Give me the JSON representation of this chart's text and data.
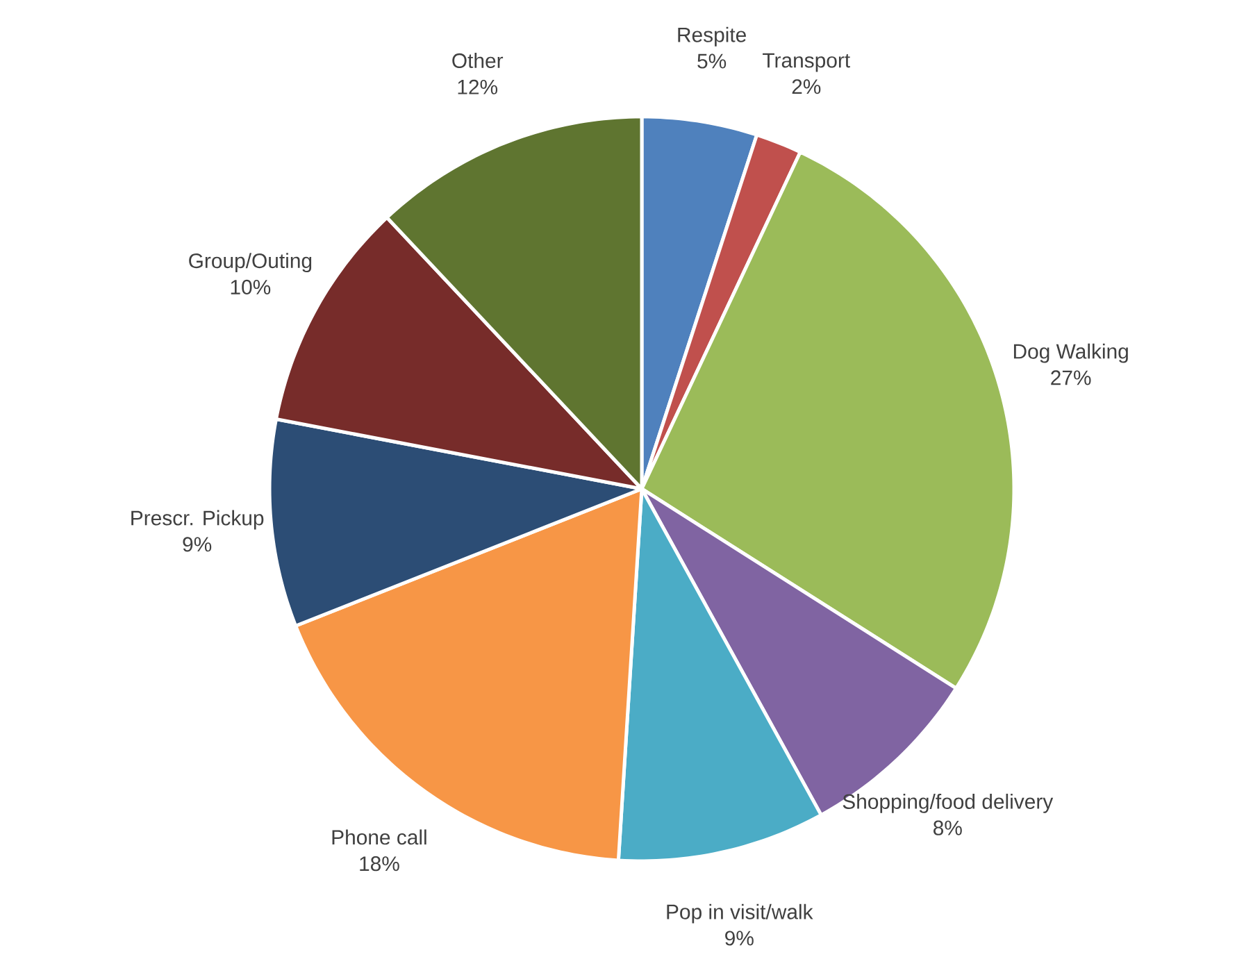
{
  "chart_data": {
    "type": "pie",
    "categories": [
      "Respite",
      "Transport",
      "Dog Walking",
      "Shopping/food delivery",
      "Pop in visit/walk",
      "Phone call",
      "Prescr. Pickup",
      "Group/Outing",
      "Other"
    ],
    "values": [
      5,
      2,
      27,
      8,
      9,
      18,
      9,
      10,
      12
    ],
    "value_labels": [
      "5%",
      "2%",
      "27%",
      "8%",
      "9%",
      "18%",
      "9%",
      "10%",
      "12%"
    ],
    "colors": [
      "#4f81bd",
      "#c0504d",
      "#9bbb59",
      "#8064a2",
      "#4bacc6",
      "#f79646",
      "#2c4d75",
      "#772c2a",
      "#5f7530"
    ]
  }
}
